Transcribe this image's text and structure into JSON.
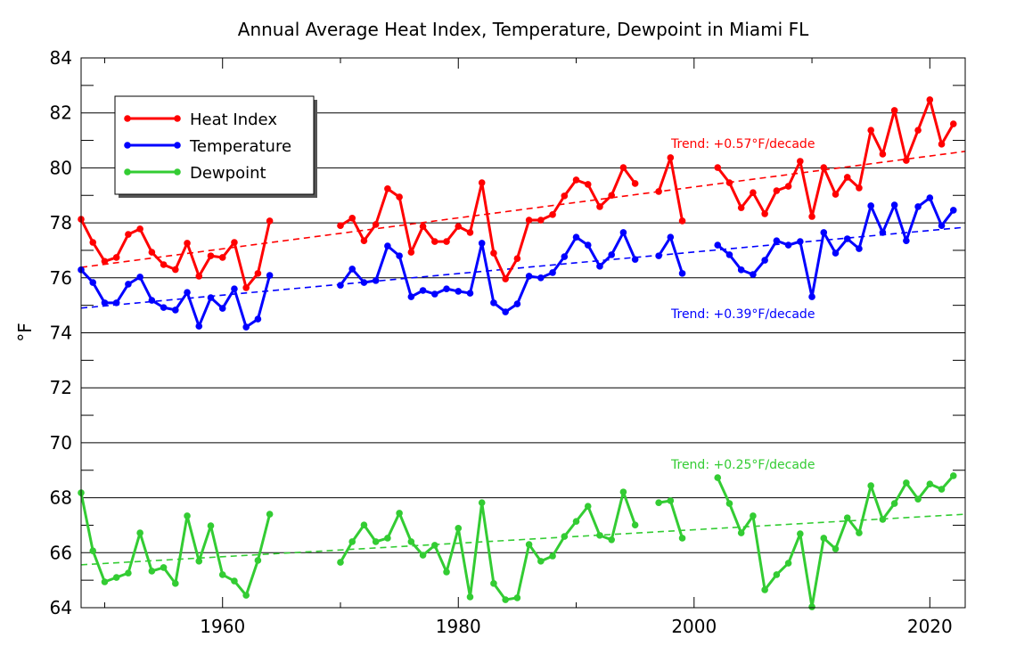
{
  "chart_data": {
    "type": "line",
    "title": "Annual Average Heat Index, Temperature, Dewpoint in Miami FL",
    "xlabel": "",
    "ylabel": "°F",
    "xlim": [
      1948,
      2023
    ],
    "ylim": [
      64,
      84
    ],
    "xticks": [
      1960,
      1980,
      2000,
      2020
    ],
    "yticks": [
      64,
      66,
      68,
      70,
      72,
      74,
      76,
      78,
      80,
      82,
      84
    ],
    "grid": "horizontal",
    "legend_placement": "top-left",
    "x": [
      1948,
      1949,
      1950,
      1951,
      1952,
      1953,
      1954,
      1955,
      1956,
      1957,
      1958,
      1959,
      1960,
      1961,
      1962,
      1963,
      1964,
      1965,
      1966,
      1967,
      1968,
      1969,
      1970,
      1971,
      1972,
      1973,
      1974,
      1975,
      1976,
      1977,
      1978,
      1979,
      1980,
      1981,
      1982,
      1983,
      1984,
      1985,
      1986,
      1987,
      1988,
      1989,
      1990,
      1991,
      1992,
      1993,
      1994,
      1995,
      1996,
      1997,
      1998,
      1999,
      2000,
      2001,
      2002,
      2003,
      2004,
      2005,
      2006,
      2007,
      2008,
      2009,
      2010,
      2011,
      2012,
      2013,
      2014,
      2015,
      2016,
      2017,
      2018,
      2019,
      2020,
      2021,
      2022
    ],
    "series": [
      {
        "name": "Heat Index",
        "color": "#ff0000",
        "values": [
          78.13,
          77.29,
          76.6,
          76.74,
          77.58,
          77.78,
          76.93,
          76.48,
          76.3,
          77.26,
          76.06,
          76.8,
          76.74,
          77.29,
          75.64,
          76.16,
          78.07,
          null,
          null,
          null,
          null,
          null,
          77.9,
          78.17,
          77.35,
          77.94,
          79.24,
          78.94,
          76.93,
          77.87,
          77.32,
          77.32,
          77.87,
          77.65,
          79.46,
          76.9,
          75.96,
          76.7,
          78.1,
          78.1,
          78.3,
          78.98,
          79.56,
          79.4,
          78.59,
          79.0,
          80.01,
          79.43,
          null,
          79.14,
          80.37,
          78.07,
          null,
          null,
          80.01,
          79.46,
          78.55,
          79.1,
          78.33,
          79.17,
          79.33,
          80.24,
          78.23,
          80.01,
          79.04,
          79.66,
          79.27,
          81.37,
          80.5,
          82.09,
          80.27,
          81.37,
          82.48,
          80.86,
          81.6
        ],
        "trend": {
          "label": "Trend: +0.57°F/decade",
          "start": 76.38,
          "end": 80.6
        }
      },
      {
        "name": "Temperature",
        "color": "#0000ff",
        "values": [
          76.29,
          75.83,
          75.09,
          75.09,
          75.77,
          76.03,
          75.18,
          74.92,
          74.83,
          75.47,
          74.24,
          75.28,
          74.89,
          75.6,
          74.21,
          74.5,
          76.09,
          null,
          null,
          null,
          null,
          null,
          75.73,
          76.32,
          75.83,
          75.9,
          77.16,
          76.8,
          75.31,
          75.54,
          75.41,
          75.6,
          75.51,
          75.44,
          77.26,
          75.09,
          74.76,
          75.05,
          76.06,
          76.0,
          76.19,
          76.77,
          77.48,
          77.19,
          76.42,
          76.84,
          77.65,
          76.67,
          null,
          76.8,
          77.48,
          76.16,
          null,
          null,
          77.19,
          76.84,
          76.29,
          76.12,
          76.64,
          77.35,
          77.19,
          77.32,
          75.31,
          77.65,
          76.9,
          77.42,
          77.06,
          78.62,
          77.65,
          78.65,
          77.35,
          78.59,
          78.91,
          77.9,
          78.46
        ],
        "trend": {
          "label": "Trend: +0.39°F/decade",
          "start": 74.9,
          "end": 77.84
        }
      },
      {
        "name": "Dewpoint",
        "color": "#33cc33",
        "values": [
          68.18,
          66.07,
          64.94,
          65.1,
          65.26,
          66.72,
          65.33,
          65.46,
          64.88,
          67.34,
          65.69,
          66.98,
          65.2,
          64.97,
          64.45,
          65.72,
          67.4,
          null,
          null,
          null,
          null,
          null,
          65.65,
          66.4,
          67.01,
          66.4,
          66.53,
          67.44,
          66.4,
          65.91,
          66.27,
          65.3,
          66.89,
          64.39,
          67.82,
          64.88,
          64.29,
          64.36,
          66.3,
          65.69,
          65.88,
          66.59,
          67.14,
          67.69,
          66.63,
          66.47,
          68.21,
          67.01,
          null,
          67.82,
          67.89,
          66.53,
          null,
          null,
          68.73,
          67.79,
          66.72,
          67.34,
          64.65,
          65.2,
          65.62,
          66.69,
          64.03,
          66.53,
          66.14,
          67.27,
          66.72,
          68.44,
          67.21,
          67.79,
          68.54,
          67.95,
          68.5,
          68.31,
          68.8
        ],
        "trend": {
          "label": "Trend: +0.25°F/decade",
          "start": 65.56,
          "end": 67.4
        }
      }
    ]
  }
}
